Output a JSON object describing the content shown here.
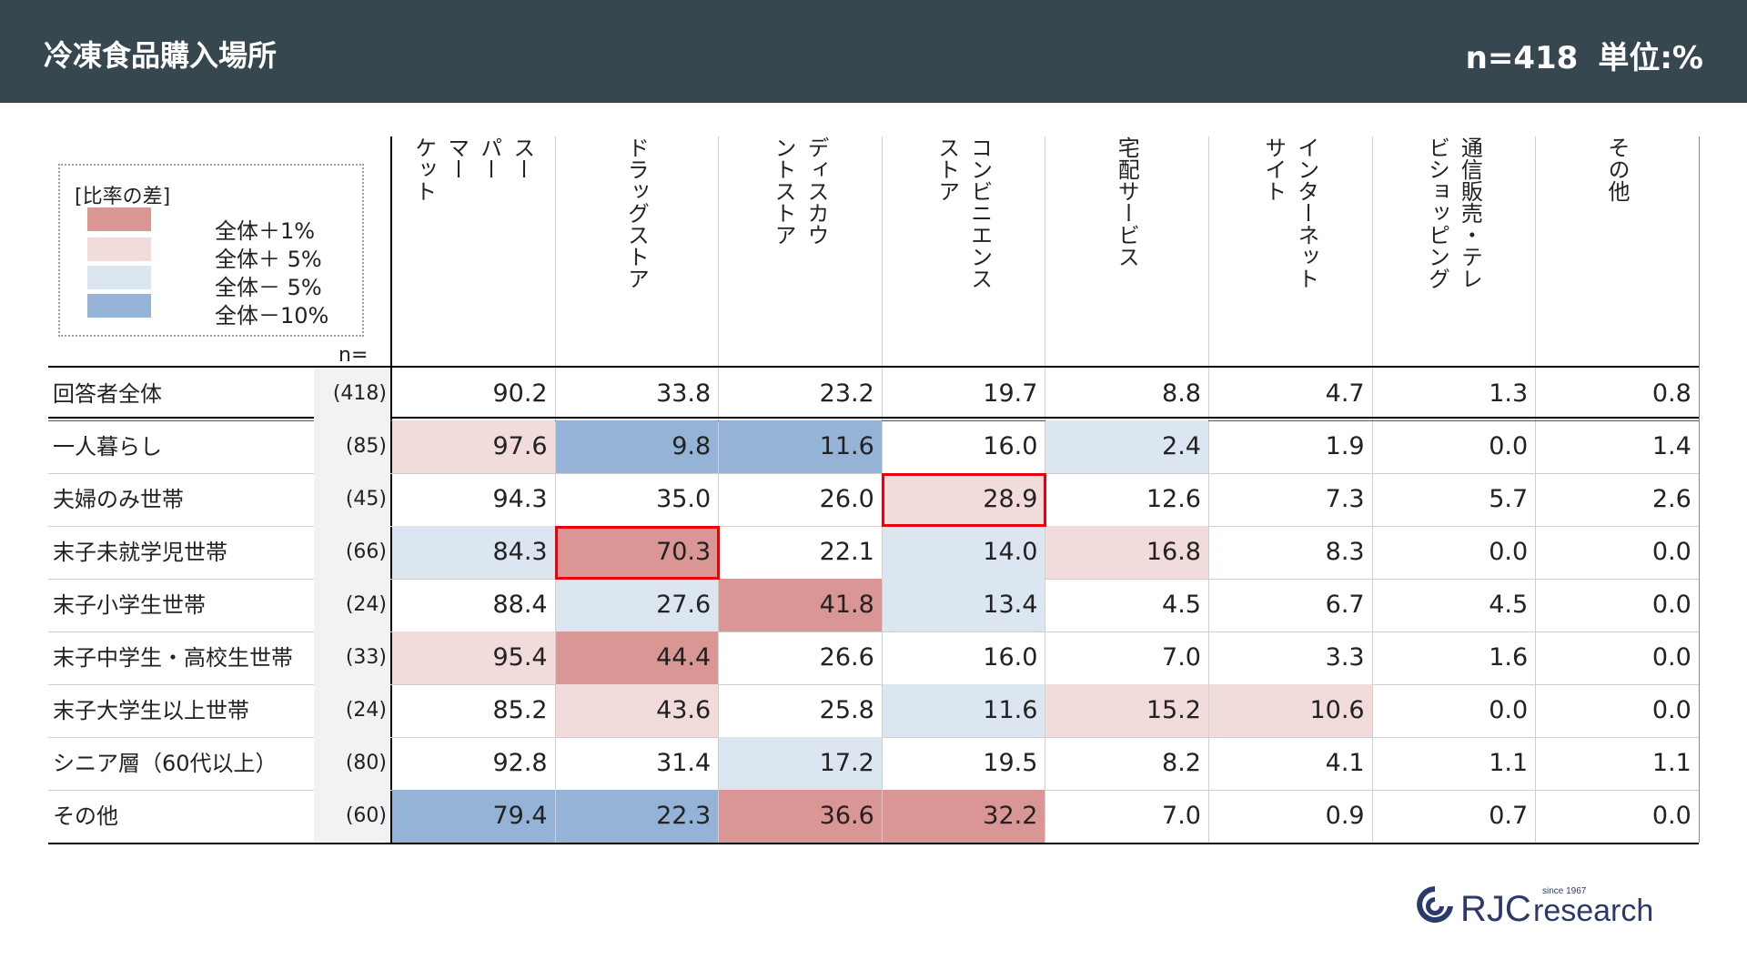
{
  "header": {
    "title": "冷凍食品購入場所",
    "n_label": "n=418",
    "unit_label": "単位:%"
  },
  "legend": {
    "title": "[比率の差]",
    "items": [
      {
        "label": "全体＋1%",
        "color": "#d99694"
      },
      {
        "label": "全体＋ 5%",
        "color": "#f2dcdb"
      },
      {
        "label": "全体－ 5%",
        "color": "#dce6f1"
      },
      {
        "label": "全体－10%",
        "color": "#95b3d7"
      }
    ],
    "n_label": "n="
  },
  "chart_data": {
    "type": "table",
    "columns": [
      "スーパーマーケット",
      "ドラッグストア",
      "ディスカウントストア",
      "コンビニエンスストア",
      "宅配サービス",
      "インターネットサイト",
      "通信販売・テレビショッピング",
      "その他"
    ],
    "column_lines": [
      [
        "スー",
        "パー",
        "マー",
        "ケット"
      ],
      [
        "ドラッグストア"
      ],
      [
        "ディスカウ",
        "ントストア"
      ],
      [
        "コンビニエンス",
        "ストア"
      ],
      [
        "宅配サービス"
      ],
      [
        "インターネット",
        "サイト"
      ],
      [
        "通信販売・テレ",
        "ビショッピング"
      ],
      [
        "その他"
      ]
    ],
    "total": {
      "label": "回答者全体",
      "n": "(418)",
      "values": [
        "90.2",
        "33.8",
        "23.2",
        "19.7",
        "8.8",
        "4.7",
        "1.3",
        "0.8"
      ]
    },
    "rows": [
      {
        "label": "一人暮らし",
        "n": "(85)",
        "values": [
          "97.6",
          "9.8",
          "11.6",
          "16.0",
          "2.4",
          "1.9",
          "0.0",
          "1.4"
        ],
        "shade": [
          "p5",
          "m10",
          "m10",
          "",
          "m5",
          "",
          "",
          ""
        ]
      },
      {
        "label": "夫婦のみ世帯",
        "n": "(45)",
        "values": [
          "94.3",
          "35.0",
          "26.0",
          "28.9",
          "12.6",
          "7.3",
          "5.7",
          "2.6"
        ],
        "shade": [
          "",
          "",
          "",
          "p5",
          "",
          "",
          "",
          ""
        ]
      },
      {
        "label": "末子未就学児世帯",
        "n": "(66)",
        "values": [
          "84.3",
          "70.3",
          "22.1",
          "14.0",
          "16.8",
          "8.3",
          "0.0",
          "0.0"
        ],
        "shade": [
          "m5",
          "p1",
          "",
          "m5",
          "p5",
          "",
          "",
          ""
        ]
      },
      {
        "label": "末子小学生世帯",
        "n": "(24)",
        "values": [
          "88.4",
          "27.6",
          "41.8",
          "13.4",
          "4.5",
          "6.7",
          "4.5",
          "0.0"
        ],
        "shade": [
          "",
          "m5",
          "p1",
          "m5",
          "",
          "",
          "",
          ""
        ]
      },
      {
        "label": "末子中学生・高校生世帯",
        "n": "(33)",
        "values": [
          "95.4",
          "44.4",
          "26.6",
          "16.0",
          "7.0",
          "3.3",
          "1.6",
          "0.0"
        ],
        "shade": [
          "p5",
          "p1",
          "",
          "",
          "",
          "",
          "",
          ""
        ]
      },
      {
        "label": "末子大学生以上世帯",
        "n": "(24)",
        "values": [
          "85.2",
          "43.6",
          "25.8",
          "11.6",
          "15.2",
          "10.6",
          "0.0",
          "0.0"
        ],
        "shade": [
          "",
          "p5",
          "",
          "m5",
          "p5",
          "p5",
          "",
          ""
        ]
      },
      {
        "label": "シニア層（60代以上）",
        "n": "(80)",
        "values": [
          "92.8",
          "31.4",
          "17.2",
          "19.5",
          "8.2",
          "4.1",
          "1.1",
          "1.1"
        ],
        "shade": [
          "",
          "",
          "m5",
          "",
          "",
          "",
          "",
          ""
        ]
      },
      {
        "label": "その他",
        "n": "(60)",
        "values": [
          "79.4",
          "22.3",
          "36.6",
          "32.2",
          "7.0",
          "0.9",
          "0.7",
          "0.0"
        ],
        "shade": [
          "m10",
          "m10",
          "p1",
          "p1",
          "",
          "",
          "",
          ""
        ]
      }
    ],
    "shade_colors": {
      "p1": "#d99694",
      "p5": "#f2dcdb",
      "m5": "#dce6f1",
      "m10": "#95b3d7"
    },
    "highlights": [
      {
        "row": 1,
        "col": 3
      },
      {
        "row": 2,
        "col": 1
      }
    ]
  },
  "logo": {
    "text": "RJC",
    "subtext": "research",
    "since": "since 1967",
    "color": "#2b3a6b"
  }
}
